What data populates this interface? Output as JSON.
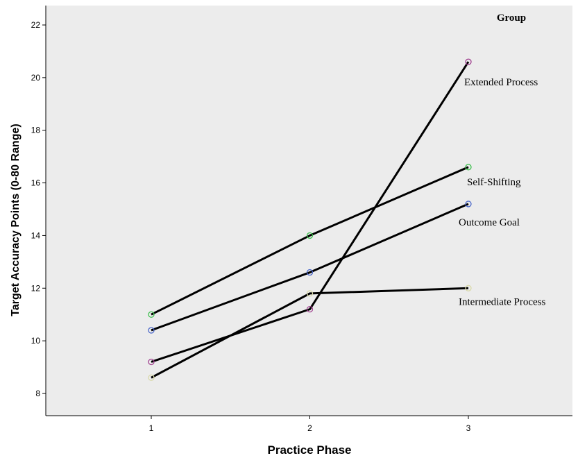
{
  "chart_data": {
    "type": "line",
    "xlabel": "Practice Phase",
    "ylabel": "Target Accuracy Points (0-80 Range)",
    "legend_title": "Group",
    "x": [
      1,
      2,
      3
    ],
    "xticks": [
      "1",
      "2",
      "3"
    ],
    "ylim": [
      7.2,
      22.7
    ],
    "yticks": [
      8,
      10,
      12,
      14,
      16,
      18,
      20,
      22
    ],
    "grid": false,
    "series": [
      {
        "name": "Extended Process",
        "values": [
          9.2,
          11.2,
          20.6
        ],
        "marker_color": "#a0408f"
      },
      {
        "name": "Self-Shifting",
        "values": [
          11.0,
          14.0,
          16.6
        ],
        "marker_color": "#3fbf4f"
      },
      {
        "name": "Outcome Goal",
        "values": [
          10.4,
          12.6,
          15.2
        ],
        "marker_color": "#4a67c9"
      },
      {
        "name": "Intermediate Process",
        "values": [
          8.6,
          11.8,
          12.0
        ],
        "marker_color": "#d9d9a8"
      }
    ]
  },
  "colors": {
    "plot_background": "#ececec",
    "line": "#000000"
  }
}
